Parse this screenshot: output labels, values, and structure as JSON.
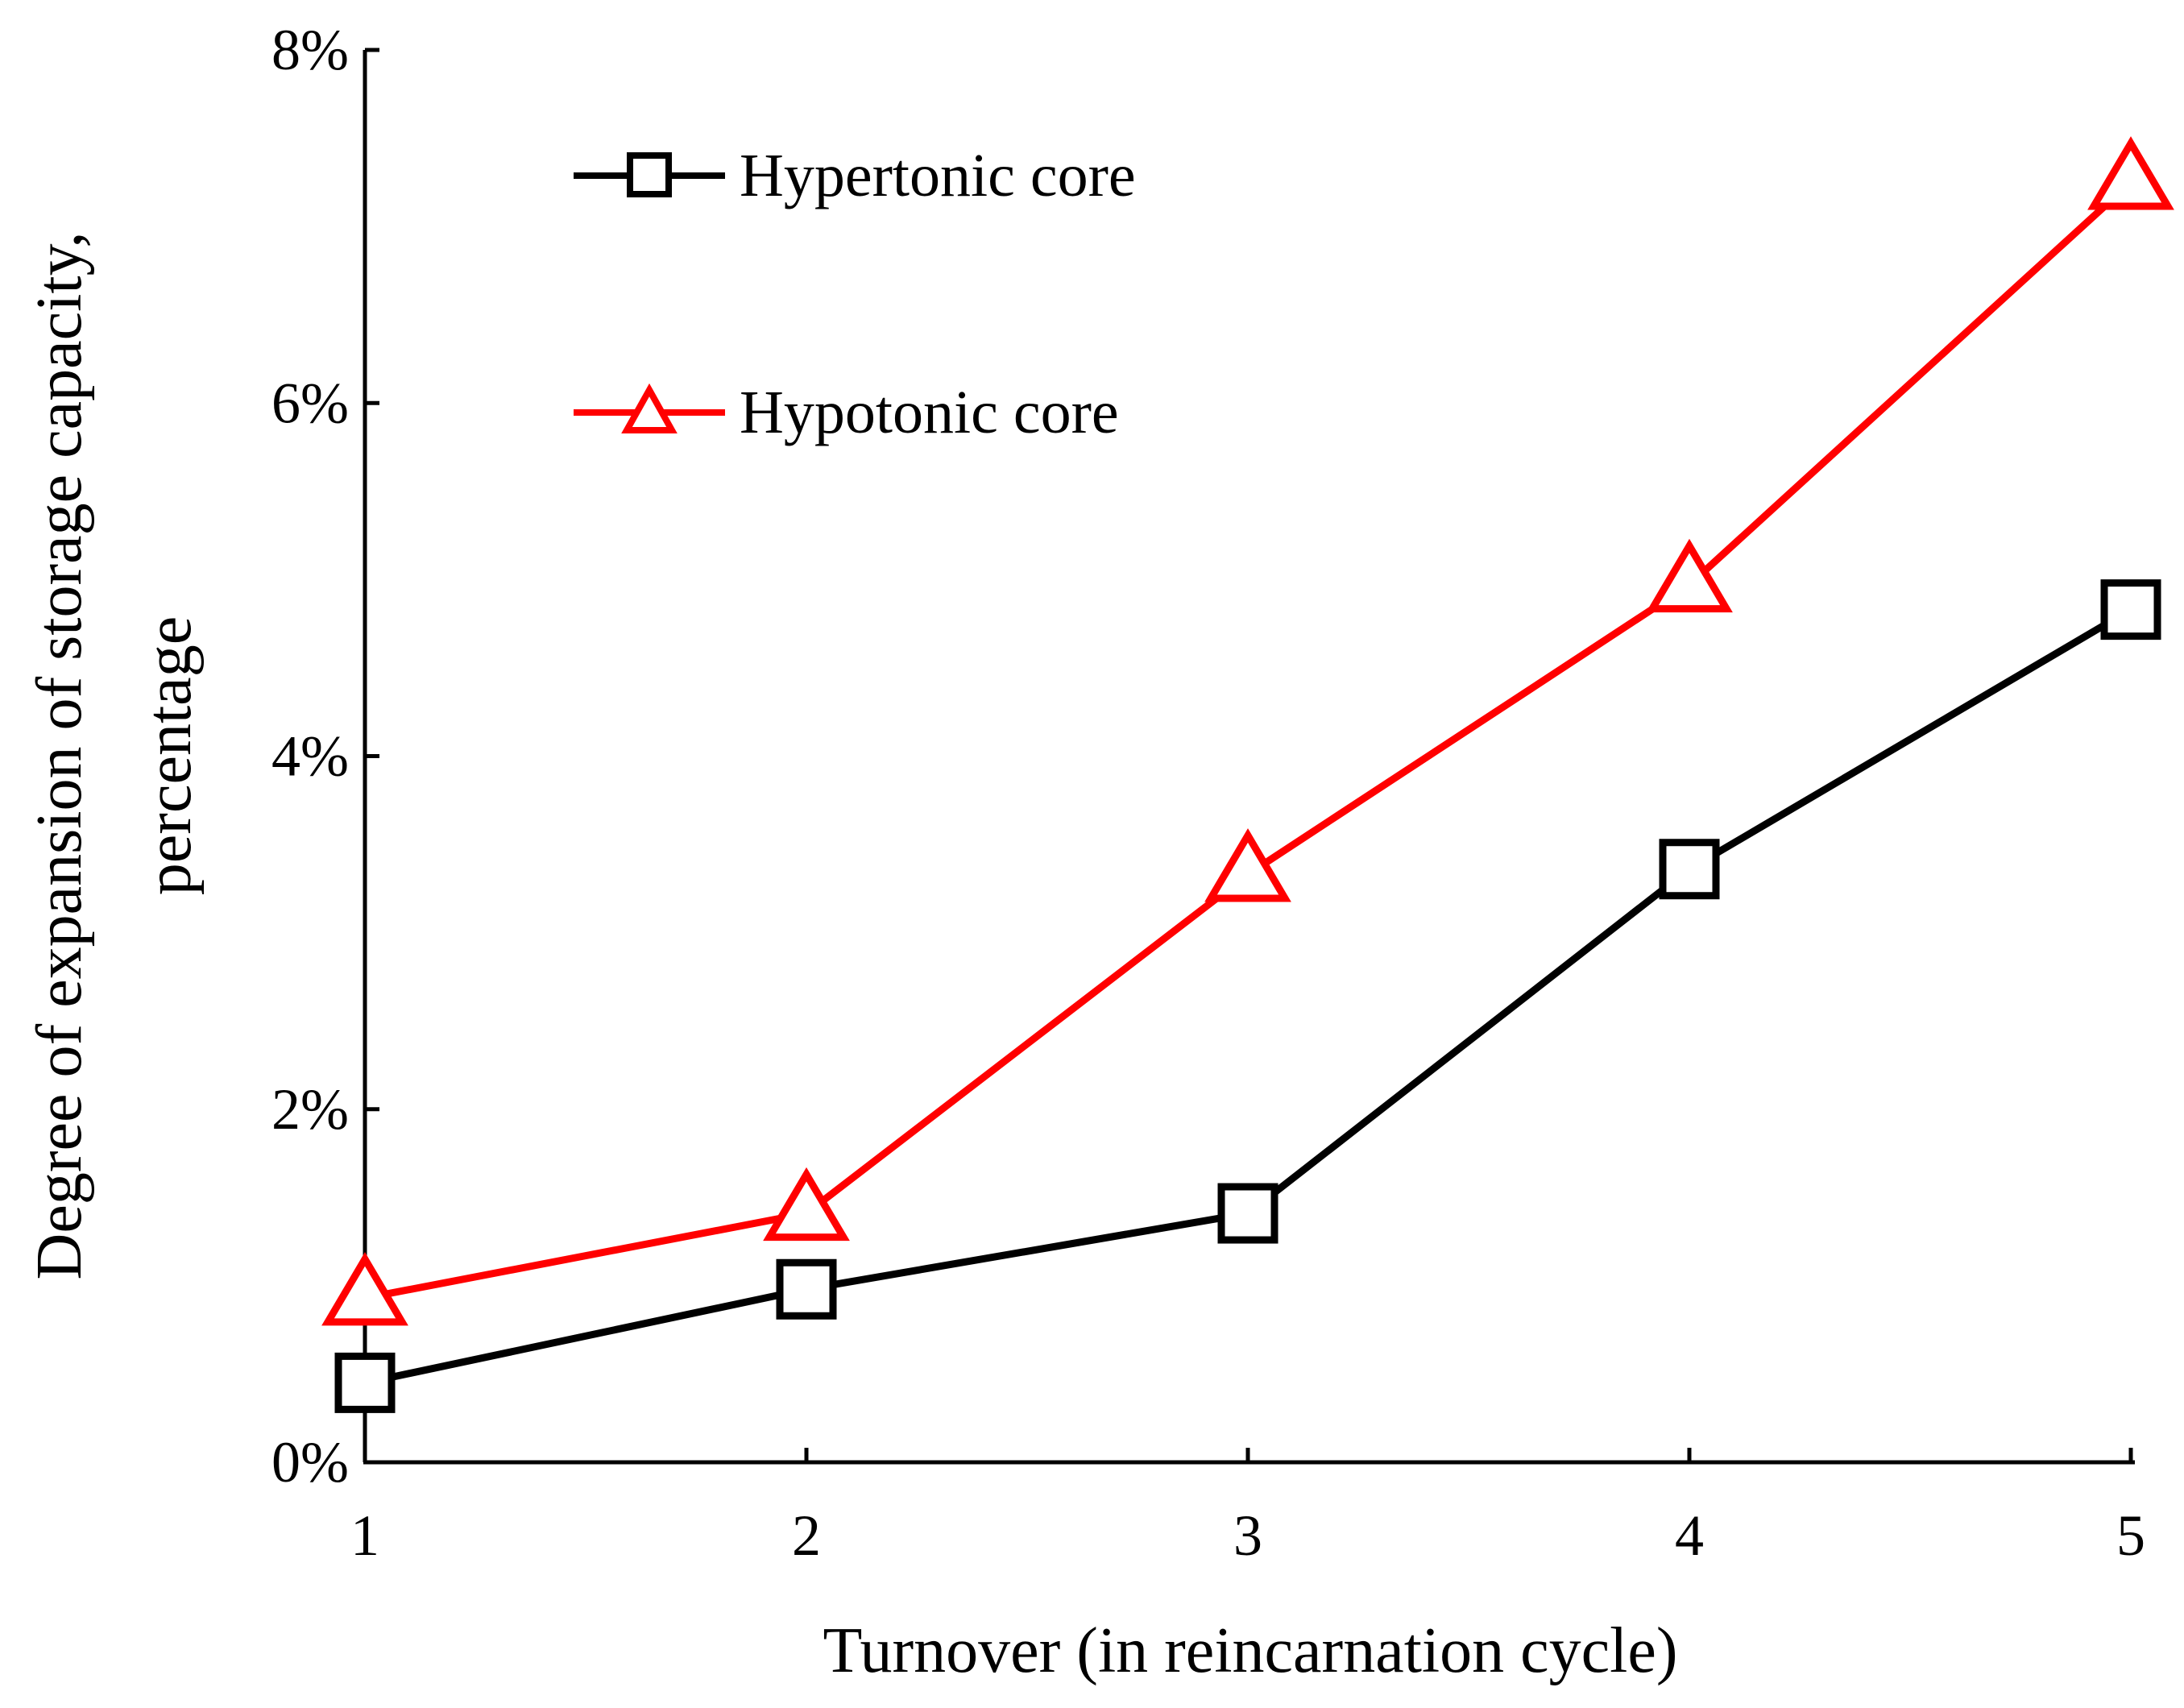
{
  "chart_data": {
    "type": "line",
    "title": "",
    "xlabel": "Turnover (in reincarnation cycle)",
    "ylabel_lines": [
      "Degree of expansion of storage capacity,",
      "percentage"
    ],
    "x": [
      1,
      2,
      3,
      4,
      5
    ],
    "xlim": [
      1,
      5
    ],
    "ylim": [
      0,
      0.08
    ],
    "y_ticks": [
      0,
      0.02,
      0.04,
      0.06,
      0.08
    ],
    "y_tick_labels": [
      "0%",
      "2%",
      "4%",
      "6%",
      "8%"
    ],
    "x_tick_labels": [
      "1",
      "2",
      "3",
      "4",
      "5"
    ],
    "grid": false,
    "legend_position": "top-left",
    "series": [
      {
        "name": "Hypertonic core",
        "color": "#000000",
        "marker": "square",
        "values": [
          0.0045,
          0.0098,
          0.0141,
          0.0336,
          0.0483
        ]
      },
      {
        "name": "Hypotonic core",
        "color": "#ff0000",
        "marker": "triangle",
        "values": [
          0.0093,
          0.0141,
          0.0333,
          0.0497,
          0.0725
        ]
      }
    ]
  }
}
